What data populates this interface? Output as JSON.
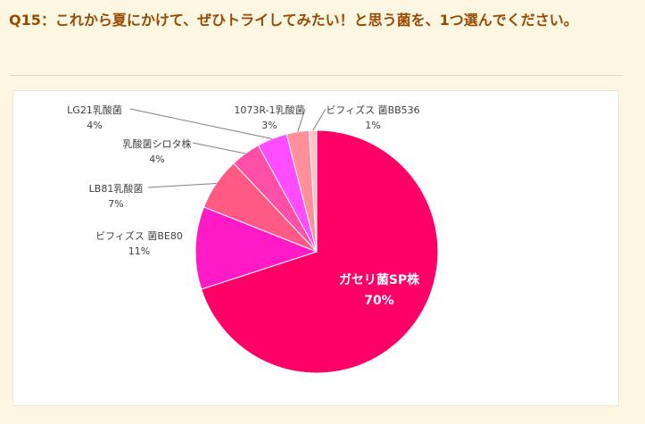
{
  "question": {
    "text": "Q15：これから夏にかけて、ぜひトライしてみたい！と思う菌を、1つ選んでください。"
  },
  "chart_data": {
    "type": "pie",
    "title": "",
    "slices": [
      {
        "label": "ガセリ菌SP株",
        "value": 70,
        "value_label": "70%",
        "color": "#ff0066"
      },
      {
        "label": "ビフィズス 菌BE80",
        "value": 11,
        "value_label": "11%",
        "color": "#ff1ac6"
      },
      {
        "label": "LB81乳酸菌",
        "value": 7,
        "value_label": "7%",
        "color": "#ff5a84"
      },
      {
        "label": "乳酸菌シロタ株",
        "value": 4,
        "value_label": "4%",
        "color": "#ff4fa6"
      },
      {
        "label": "LG21乳酸菌",
        "value": 4,
        "value_label": "4%",
        "color": "#ff4dff"
      },
      {
        "label": "1073R-1乳酸菌",
        "value": 3,
        "value_label": "3%",
        "color": "#ff8f98"
      },
      {
        "label": "ビフィズス 菌BB536",
        "value": 1,
        "value_label": "1%",
        "color": "#ffc2c6"
      }
    ]
  }
}
